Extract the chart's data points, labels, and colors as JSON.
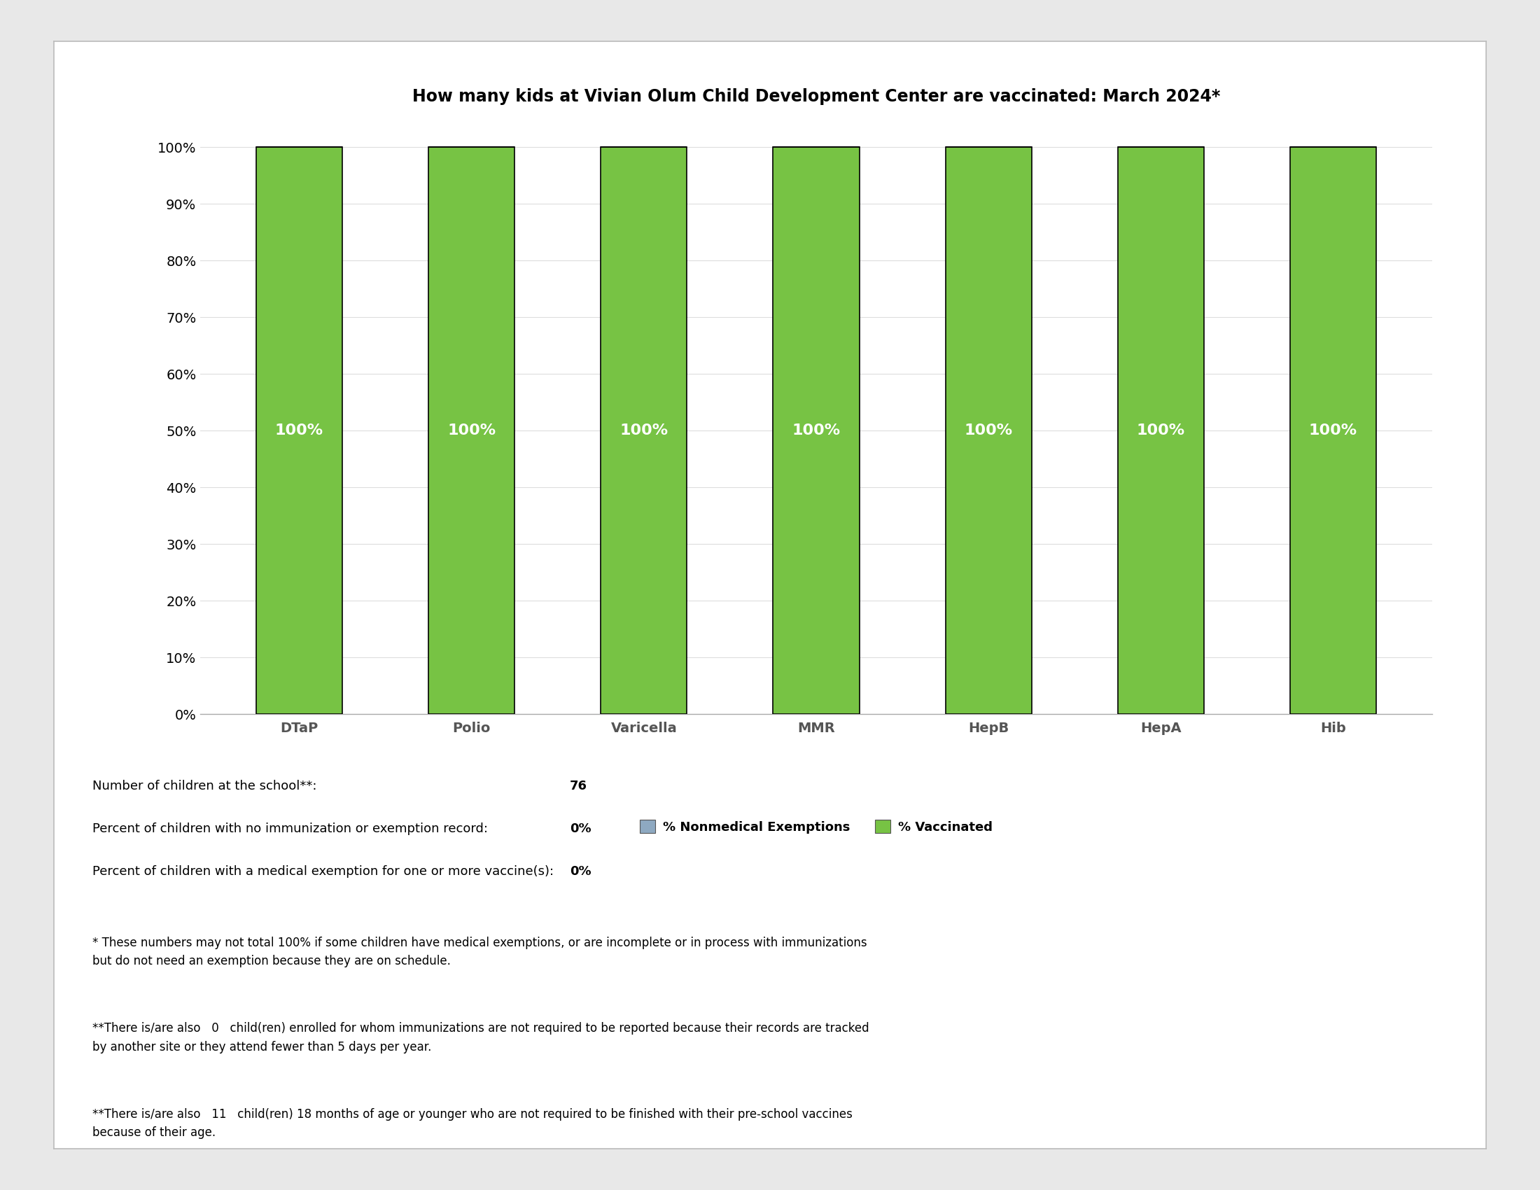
{
  "title": "How many kids at Vivian Olum Child Development Center are vaccinated: March 2024*",
  "categories": [
    "DTaP",
    "Polio",
    "Varicella",
    "MMR",
    "HepB",
    "HepA",
    "Hib"
  ],
  "vaccinated_values": [
    100,
    100,
    100,
    100,
    100,
    100,
    100
  ],
  "nonmedical_values": [
    0,
    0,
    0,
    0,
    0,
    0,
    0
  ],
  "bar_color_vaccinated": "#77C344",
  "bar_color_nonmedical": "#8EA9C1",
  "bar_label_color": "#FFFFFF",
  "bar_label_fontsize": 16,
  "ytick_labels": [
    "0%",
    "10%",
    "20%",
    "30%",
    "40%",
    "50%",
    "60%",
    "70%",
    "80%",
    "90%",
    "100%"
  ],
  "ytick_values": [
    0,
    10,
    20,
    30,
    40,
    50,
    60,
    70,
    80,
    90,
    100
  ],
  "ylim": [
    0,
    105
  ],
  "legend_nonmedical": "% Nonmedical Exemptions",
  "legend_vaccinated": "% Vaccinated",
  "stats_label1": "Number of children at the school**:",
  "stats_value1": "76",
  "stats_label2": "Percent of children with no immunization or exemption record:",
  "stats_value2": "0%",
  "stats_label3": "Percent of children with a medical exemption for one or more vaccine(s):",
  "stats_value3": "0%",
  "footnote1": "* These numbers may not total 100% if some children have medical exemptions, or are incomplete or in process with immunizations\nbut do not need an exemption because they are on schedule.",
  "footnote2": "**There is/are also   0   child(ren) enrolled for whom immunizations are not required to be reported because their records are tracked\nby another site or they attend fewer than 5 days per year.",
  "footnote3": "**There is/are also   11   child(ren) 18 months of age or younger who are not required to be finished with their pre-school vaccines\nbecause of their age.",
  "fig_bg_color": "#E8E8E8",
  "panel_bg_color": "#FFFFFF",
  "panel_edge_color": "#BBBBBB",
  "title_fontsize": 17,
  "axis_tick_fontsize": 14,
  "category_fontsize": 14,
  "stats_fontsize": 13,
  "footnote_fontsize": 12,
  "legend_fontsize": 13
}
